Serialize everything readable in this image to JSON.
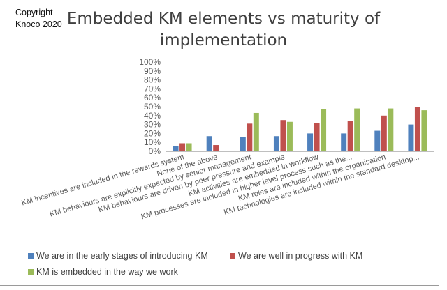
{
  "copyright": {
    "line1": "Copyright",
    "line2": "Knoco 2020"
  },
  "chart_data": {
    "type": "bar",
    "title": "Embedded KM elements vs maturity of implementation",
    "categories": [
      "KM incentives are included in the rewards system",
      "None of the above",
      "KM behaviours are explicitly expected by senior management",
      "KM behaviours are driven by peer pressure and example",
      "KM activities are embedded in workflow",
      "KM processes are included in higher level process such as the...",
      "KM roles are included within the organisation",
      "KM technologies are included within the standard desktop..."
    ],
    "series": [
      {
        "name": "We are in the early stages of introducing KM",
        "color": "#4f81bd",
        "values": [
          6,
          17,
          16,
          17,
          20,
          20,
          23,
          30
        ]
      },
      {
        "name": "We are well in progress with KM",
        "color": "#c0504d",
        "values": [
          9,
          7,
          31,
          35,
          32,
          34,
          40,
          50
        ]
      },
      {
        "name": "KM is embedded in the way we work",
        "color": "#9bbb59",
        "values": [
          9,
          null,
          43,
          33,
          47,
          48,
          48,
          46
        ]
      }
    ],
    "ylim": [
      0,
      100
    ],
    "yticks": [
      "0%",
      "10%",
      "20%",
      "30%",
      "40%",
      "50%",
      "60%",
      "70%",
      "80%",
      "90%",
      "100%"
    ],
    "xlabel": "",
    "ylabel": "",
    "grid": false,
    "legend": "bottom"
  }
}
